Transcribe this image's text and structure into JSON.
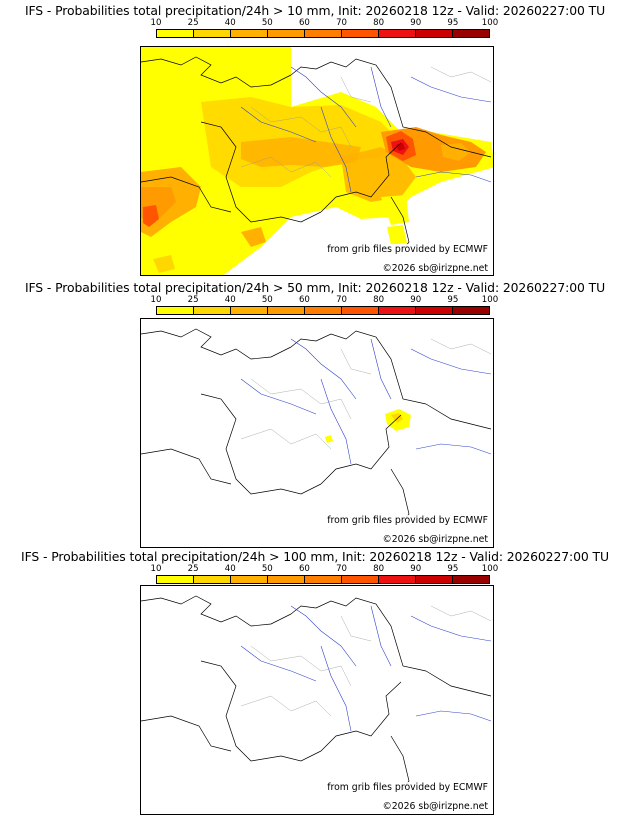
{
  "colorbar": {
    "ticks": [
      "10",
      "25",
      "40",
      "50",
      "60",
      "70",
      "80",
      "90",
      "95",
      "100"
    ],
    "colors": [
      "#ffff00",
      "#ffd700",
      "#ffb000",
      "#ff9a00",
      "#ff7e00",
      "#ff5500",
      "#ee1111",
      "#cc0000",
      "#990000",
      "#4a0000"
    ]
  },
  "credits": {
    "source": "from grib files provided by ECMWF",
    "copyright": "©2026 sb@irizpne.net"
  },
  "panels": [
    {
      "title": "IFS - Probabilities total precipitation/24h > 10 mm, Init: 20260218 12z - Valid: 20260227:00 TU",
      "threshold_mm": 10
    },
    {
      "title": "IFS - Probabilities total precipitation/24h > 50 mm, Init: 20260218 12z - Valid: 20260227:00 TU",
      "threshold_mm": 50
    },
    {
      "title": "IFS - Probabilities total precipitation/24h > 100 mm, Init: 20260218 12z - Valid: 20260227:00 TU",
      "threshold_mm": 100
    }
  ]
}
